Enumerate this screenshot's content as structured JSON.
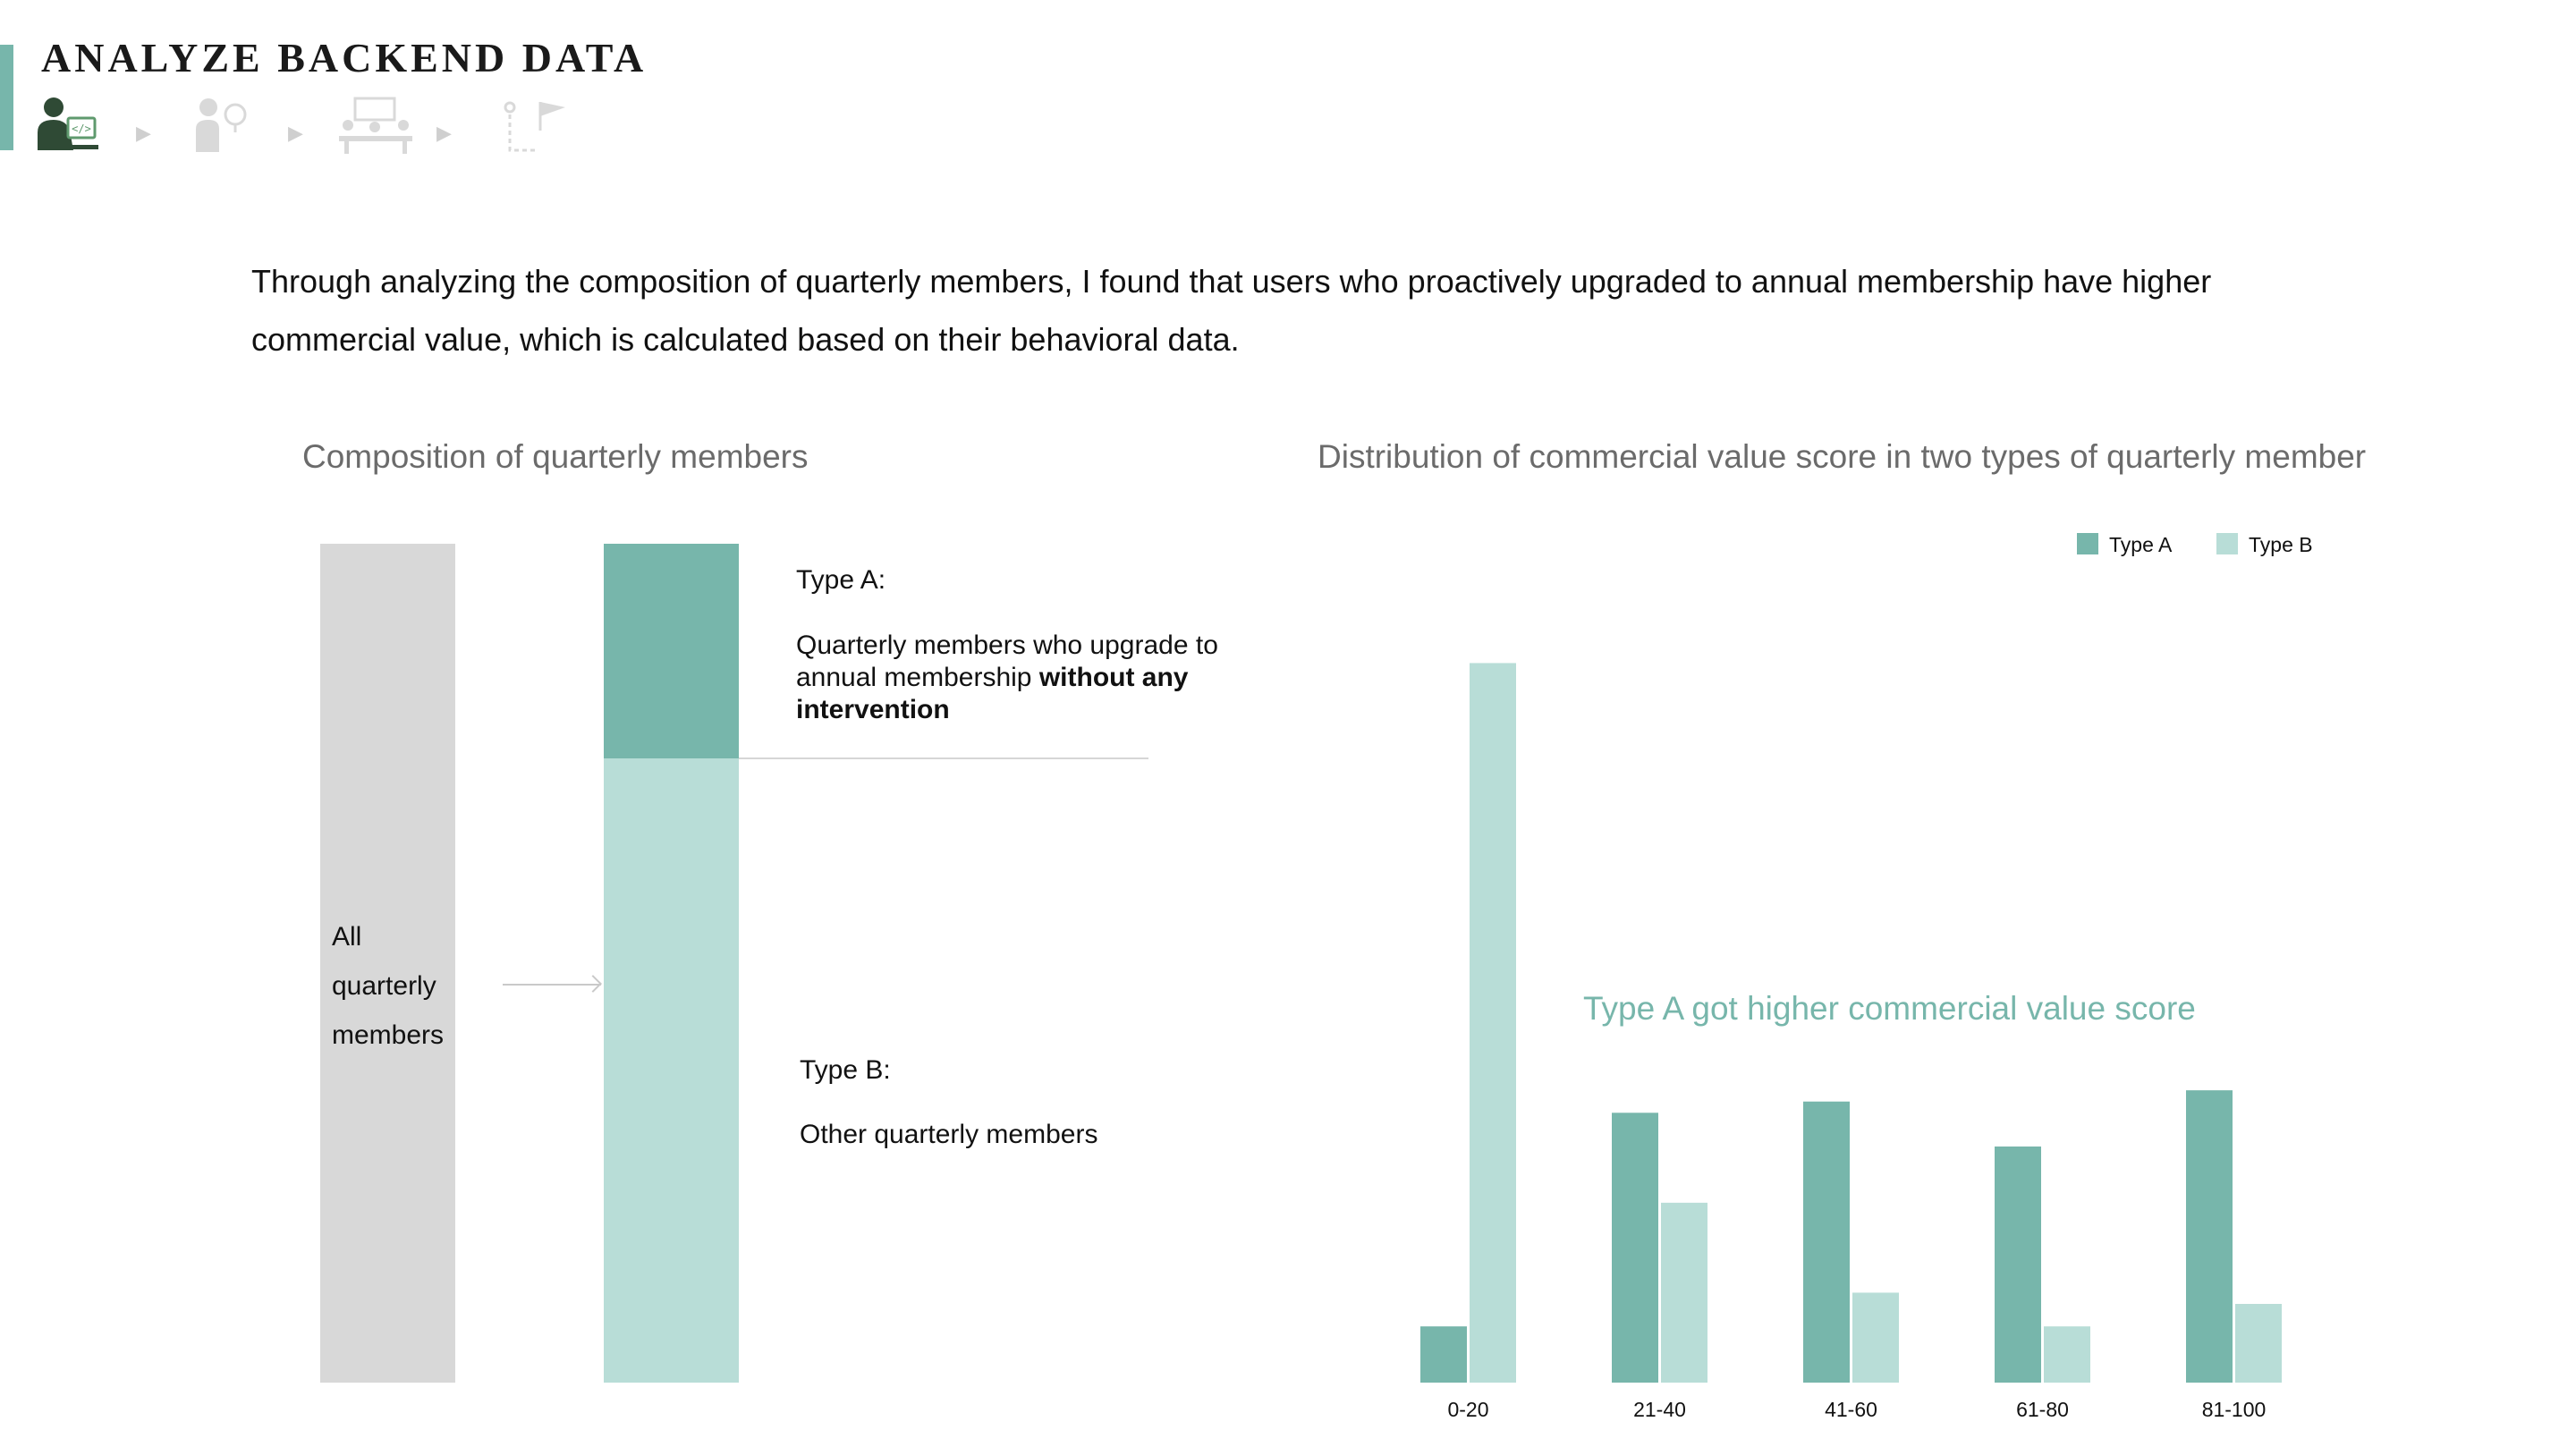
{
  "header": {
    "title": "ANALYZE BACKEND DATA",
    "steps": [
      {
        "icon": "developer-at-computer-icon",
        "active": true
      },
      {
        "icon": "person-with-idea-icon",
        "active": false
      },
      {
        "icon": "team-meeting-icon",
        "active": false
      },
      {
        "icon": "finish-flag-path-icon",
        "active": false
      }
    ],
    "accent_color": "#77b6ab",
    "active_icon_color": "#2f4a35",
    "inactive_icon_color": "#d9d9d9"
  },
  "intro": {
    "text": "Through analyzing the composition of quarterly members, I found that users who proactively upgraded to annual membership have higher commercial value, which is calculated based on their behavioral data."
  },
  "composition": {
    "title": "Composition of quarterly members",
    "all_label": "All quarterly members",
    "type_a_share": 0.256,
    "type_a": {
      "heading": "Type A:",
      "desc_prefix": "Quarterly members who upgrade to annual membership ",
      "desc_bold": "without any intervention"
    },
    "type_b": {
      "heading": "Type B:",
      "desc": "Other quarterly members"
    },
    "colors": {
      "all": "#d8d8d8",
      "type_a": "#77b6ab",
      "type_b": "#b8ddd7"
    }
  },
  "chart_data": {
    "type": "bar",
    "title": "Distribution of commercial value score in two types of quarterly member",
    "categories": [
      "0-20",
      "21-40",
      "41-60",
      "61-80",
      "81-100"
    ],
    "series": [
      {
        "name": "Type A",
        "color": "#77b6ab",
        "values": [
          5,
          24,
          25,
          21,
          26
        ]
      },
      {
        "name": "Type B",
        "color": "#b8ddd7",
        "values": [
          64,
          16,
          8,
          5,
          7
        ]
      }
    ],
    "ylim": [
      0,
      70
    ],
    "grid": false,
    "legend": "top-right",
    "annotation": "Type A got higher commercial value score"
  }
}
